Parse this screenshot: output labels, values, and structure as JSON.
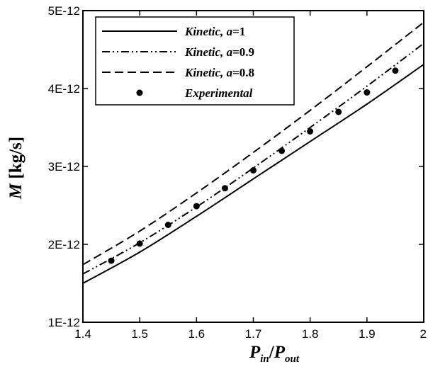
{
  "chart_data": {
    "type": "line",
    "x_axis": {
      "range": [
        1.4,
        2.0
      ],
      "ticks": [
        1.4,
        1.5,
        1.6,
        1.7,
        1.8,
        1.9,
        2.0
      ],
      "tick_labels": [
        "1.4",
        "1.5",
        "1.6",
        "1.7",
        "1.8",
        "1.9",
        "2"
      ],
      "label": {
        "main1": "P",
        "sub1": "in",
        "slash": "/",
        "main2": "P",
        "sub2": "out"
      }
    },
    "y_axis": {
      "range": [
        1e-12,
        5e-12
      ],
      "ticks": [
        1e-12,
        2e-12,
        3e-12,
        4e-12,
        5e-12
      ],
      "tick_labels": [
        "1E-12",
        "2E-12",
        "3E-12",
        "4E-12",
        "5E-12"
      ],
      "label": {
        "var": "M",
        "unit": " [kg/s]"
      }
    },
    "legend_position": "top-left",
    "series": [
      {
        "name_prefix": "Kinetic, ",
        "name_var": "a",
        "name_suffix": "=1",
        "style": "solid",
        "x": [
          1.4,
          1.5,
          1.6,
          1.7,
          1.8,
          1.9,
          2.0
        ],
        "y": [
          1.5e-12,
          1.9e-12,
          2.36e-12,
          2.84e-12,
          3.32e-12,
          3.8e-12,
          4.31e-12
        ]
      },
      {
        "name_prefix": "Kinetic, ",
        "name_var": "a",
        "name_suffix": "=0.9",
        "style": "dash-dot-dot",
        "x": [
          1.4,
          1.5,
          1.6,
          1.7,
          1.8,
          1.9,
          2.0
        ],
        "y": [
          1.62e-12,
          2.02e-12,
          2.48e-12,
          2.98e-12,
          3.5e-12,
          4.03e-12,
          4.58e-12
        ]
      },
      {
        "name_prefix": "Kinetic, ",
        "name_var": "a",
        "name_suffix": "=0.8",
        "style": "dashed",
        "x": [
          1.4,
          1.5,
          1.6,
          1.7,
          1.8,
          1.9,
          2.0
        ],
        "y": [
          1.74e-12,
          2.17e-12,
          2.66e-12,
          3.18e-12,
          3.72e-12,
          4.28e-12,
          4.85e-12
        ]
      },
      {
        "name_prefix": "Experimental",
        "name_var": "",
        "name_suffix": "",
        "style": "markers",
        "x": [
          1.45,
          1.5,
          1.55,
          1.6,
          1.65,
          1.7,
          1.75,
          1.8,
          1.85,
          1.9,
          1.95
        ],
        "y": [
          1.79e-12,
          2.01e-12,
          2.25e-12,
          2.49e-12,
          2.72e-12,
          2.95e-12,
          3.2e-12,
          3.45e-12,
          3.7e-12,
          3.95e-12,
          4.23e-12
        ]
      }
    ]
  }
}
